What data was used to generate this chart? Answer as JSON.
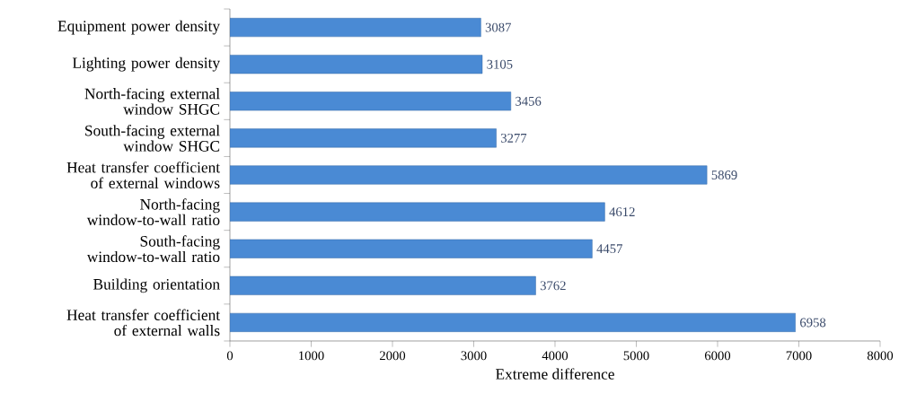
{
  "chart_data": {
    "type": "bar",
    "orientation": "horizontal",
    "xlabel": "Extreme difference",
    "categories": [
      "Equipment power density",
      "Lighting power density",
      "North-facing external window SHGC",
      "South-facing external window SHGC",
      "Heat transfer coefficient of external windows",
      "North-facing window-to-wall ratio",
      "South-facing window-to-wall ratio",
      "Building orientation",
      "Heat transfer coefficient of external walls"
    ],
    "values": [
      3087,
      3105,
      3456,
      3277,
      5869,
      4612,
      4457,
      3762,
      6958
    ],
    "color": "#4a8ad4",
    "data_labels": true,
    "xlim": [
      0,
      8000
    ],
    "xticks": [
      0,
      1000,
      2000,
      3000,
      4000,
      5000,
      6000,
      7000,
      8000
    ]
  }
}
